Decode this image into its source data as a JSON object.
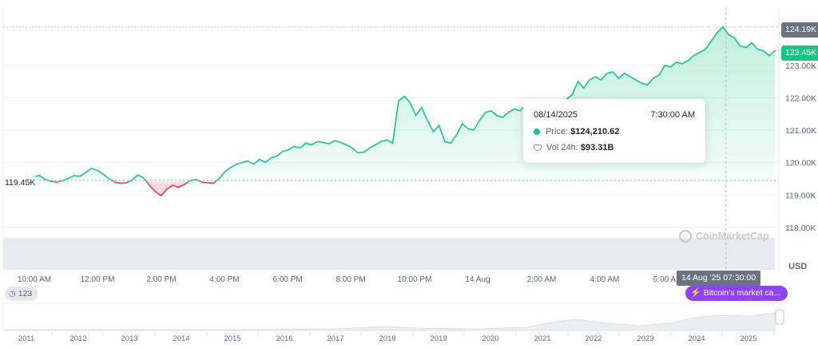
{
  "chart_data": {
    "type": "line",
    "title": "",
    "currency_unit": "USD",
    "y_axis": {
      "ticks": [
        "118.00K",
        "119.00K",
        "120.00K",
        "121.00K",
        "122.00K",
        "123.00K"
      ],
      "ylim": [
        117.2,
        124.6
      ],
      "grid": true
    },
    "x_axis": {
      "ticks": [
        "10:00 AM",
        "12:00 PM",
        "2:00 PM",
        "4:00 PM",
        "6:00 PM",
        "8:00 PM",
        "10:00 PM",
        "14 Aug",
        "2:00 AM",
        "4:00 AM",
        "6:00 AM"
      ]
    },
    "opening_price": 119.45,
    "opening_price_label": "119.45K",
    "high_label": "124.19K",
    "current_label": "123.45K",
    "series": [
      {
        "values": [
          119.45,
          119.3,
          119.22,
          119.38,
          119.5,
          119.56,
          119.6,
          119.48,
          119.42,
          119.4,
          119.44,
          119.52,
          119.6,
          119.58,
          119.7,
          119.82,
          119.76,
          119.64,
          119.5,
          119.4,
          119.36,
          119.38,
          119.46,
          119.62,
          119.52,
          119.3,
          119.1,
          118.98,
          119.18,
          119.3,
          119.24,
          119.32,
          119.44,
          119.48,
          119.4,
          119.38,
          119.36,
          119.5,
          119.72,
          119.85,
          119.95,
          120.0,
          120.05,
          119.95,
          120.1,
          120.0,
          120.15,
          120.2,
          120.35,
          120.4,
          120.5,
          120.45,
          120.6,
          120.55,
          120.65,
          120.62,
          120.58,
          120.68,
          120.62,
          120.55,
          120.45,
          120.3,
          120.32,
          120.45,
          120.55,
          120.65,
          120.7,
          120.6,
          121.9,
          122.05,
          121.85,
          121.45,
          121.7,
          121.3,
          120.95,
          121.15,
          120.65,
          120.6,
          120.85,
          121.2,
          121.05,
          121.0,
          121.3,
          121.55,
          121.6,
          121.45,
          121.4,
          121.55,
          121.65,
          121.6,
          121.8,
          121.55,
          121.7,
          121.85,
          121.75,
          121.65,
          121.85,
          121.95,
          122.1,
          122.5,
          122.3,
          122.55,
          122.65,
          122.55,
          122.75,
          122.8,
          122.6,
          122.75,
          122.65,
          122.55,
          122.45,
          122.4,
          122.6,
          122.7,
          123.0,
          122.95,
          123.1,
          123.05,
          123.15,
          123.3,
          123.4,
          123.5,
          123.75,
          124.0,
          124.19,
          123.95,
          123.85,
          123.6,
          123.55,
          123.7,
          123.5,
          123.45,
          123.3,
          123.45
        ]
      }
    ],
    "volume": [],
    "navigator": {
      "years": [
        "2011",
        "2012",
        "2013",
        "2014",
        "2015",
        "2016",
        "2017",
        "2018",
        "2019",
        "2020",
        "2021",
        "2022",
        "2023",
        "2024",
        "2025"
      ]
    }
  },
  "tooltip": {
    "date": "08/14/2025",
    "time": "7:30:00 AM",
    "price_label": "Price:",
    "price_value": "$124,210.62",
    "volume_label": "Vol 24h:",
    "volume_value": "$93.31B"
  },
  "hover_time_label": "14 Aug '25 07:30:00",
  "event_pill": "Bitcoin's market ca...",
  "events_count": "123",
  "watermark": "CoinMarketCap",
  "colors": {
    "up": "#16c784",
    "down": "#ea3943",
    "grid": "#eff2f5",
    "volume": "#e3e6ec",
    "event": "#8b45f6"
  }
}
